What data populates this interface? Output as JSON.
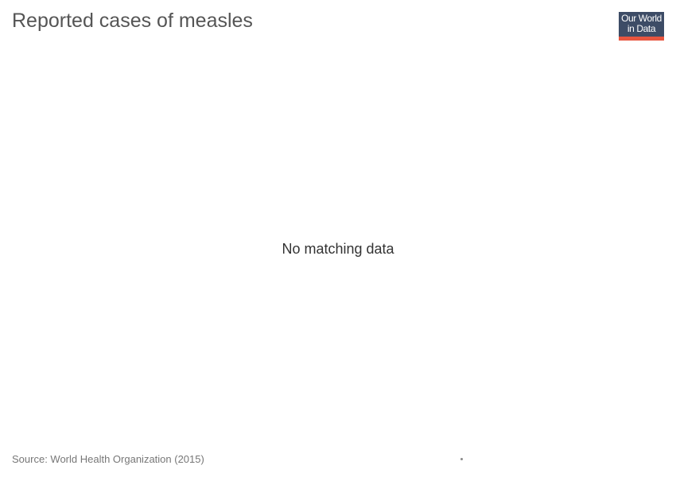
{
  "header": {
    "title": "Reported cases of measles"
  },
  "logo": {
    "line1": "Our World",
    "line2": "in Data",
    "bg_color": "#3d4c66",
    "bar_color": "#e8553f"
  },
  "chart_data": {
    "type": "line",
    "title": "Reported cases of measles",
    "series": [],
    "message": "No matching data"
  },
  "footer": {
    "source": "Source: World Health Organization (2015)"
  }
}
